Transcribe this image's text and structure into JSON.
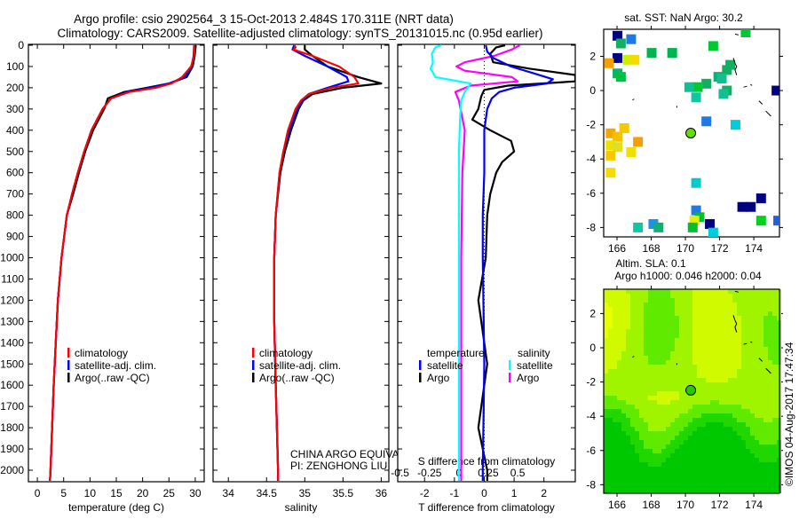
{
  "title": {
    "line1": "Argo profile: csio 2902564_3 15-Oct-2013 2.484S 170.311E (NRT data)",
    "line2": "Climatology: CARS2009. Satellite-adjusted climatology: synTS_20131015.nc (0.95d earlier)"
  },
  "watermark": "©IMOS 04-Aug-2017 17:47:34",
  "colors": {
    "climatology": "#ff0000",
    "satellite": "#0000ff",
    "argo": "#000000",
    "sal_satellite": "#00ffff",
    "sal_argo": "#ff00ff"
  },
  "chart_data": [
    {
      "id": "temperature",
      "type": "line",
      "xlabel": "temperature (deg C)",
      "xlim": [
        -1.7,
        31.7
      ],
      "ylim": [
        0,
        2050
      ],
      "y_inverted": true,
      "xticks": [
        "0",
        "5",
        "10",
        "15",
        "20",
        "25",
        "30"
      ],
      "yticks": [
        "0",
        "100",
        "200",
        "300",
        "400",
        "500",
        "600",
        "700",
        "800",
        "900",
        "1000",
        "1100",
        "1200",
        "1300",
        "1400",
        "1500",
        "1600",
        "1700",
        "1800",
        "1900",
        "2000"
      ],
      "legend": [
        {
          "label": "climatology",
          "color": "#ff0000"
        },
        {
          "label": "satellite-adj. clim.",
          "color": "#0000ff"
        },
        {
          "label": "Argo(..raw -QC)",
          "color": "#000000"
        }
      ],
      "series": [
        {
          "name": "climatology",
          "color": "#ff0000",
          "depth": [
            0,
            50,
            100,
            150,
            180,
            200,
            220,
            250,
            300,
            400,
            500,
            600,
            700,
            800,
            1000,
            1200,
            1400,
            1600,
            1800,
            2000,
            2050
          ],
          "values": [
            29.9,
            29.8,
            29.2,
            27.5,
            25.5,
            22.5,
            17.5,
            14,
            12.4,
            10.3,
            8.9,
            7.7,
            6.6,
            5.6,
            4.6,
            3.9,
            3.5,
            3.1,
            2.8,
            2.5,
            2.4
          ]
        },
        {
          "name": "satellite-adj. clim.",
          "color": "#0000ff",
          "depth": [
            0,
            50,
            100,
            150,
            180,
            200,
            220,
            250,
            300,
            400,
            500,
            600,
            700,
            800,
            1000,
            1200,
            1400,
            1600,
            1800,
            2000,
            2050
          ],
          "values": [
            29.8,
            29.7,
            29.3,
            28.0,
            25.0,
            21.5,
            17.0,
            14,
            12.4,
            10.3,
            8.9,
            7.7,
            6.6,
            5.6,
            4.6,
            3.9,
            3.5,
            3.1,
            2.8,
            2.5,
            2.4
          ]
        },
        {
          "name": "Argo",
          "color": "#000000",
          "depth": [
            0,
            50,
            100,
            150,
            180,
            200,
            220,
            250,
            300,
            400,
            500,
            600,
            700,
            800,
            1000,
            1200,
            1400,
            1600,
            1800,
            2000,
            2050
          ],
          "values": [
            30.1,
            29.9,
            29.5,
            28.4,
            25.0,
            20.8,
            16.5,
            13.4,
            12.7,
            10.6,
            9.1,
            7.9,
            6.8,
            5.6,
            4.6,
            3.9,
            3.5,
            3.1,
            2.8,
            2.5,
            2.4
          ]
        }
      ]
    },
    {
      "id": "salinity",
      "type": "line",
      "xlabel": "salinity",
      "xlim": [
        33.8,
        36.1
      ],
      "ylim": [
        0,
        2050
      ],
      "y_inverted": true,
      "xticks": [
        "34",
        "34.5",
        "35",
        "35.5",
        "36"
      ],
      "legend": [
        {
          "label": "climatology",
          "color": "#ff0000"
        },
        {
          "label": "satellite-adj. clim.",
          "color": "#0000ff"
        },
        {
          "label": "Argo(..raw -QC)",
          "color": "#000000"
        }
      ],
      "annotation": [
        "CHINA ARGO EQUIVALENT",
        "PI: ZENGHONG LIU"
      ],
      "series": [
        {
          "name": "climatology",
          "color": "#ff0000",
          "depth": [
            0,
            10,
            20,
            50,
            100,
            150,
            180,
            200,
            230,
            260,
            300,
            400,
            500,
            600,
            800,
            1000,
            1300,
            1600,
            2000,
            2050
          ],
          "values": [
            34.86,
            34.88,
            34.85,
            35.1,
            35.45,
            35.65,
            35.7,
            35.35,
            35.05,
            34.95,
            34.88,
            34.78,
            34.72,
            34.67,
            34.62,
            34.6,
            34.6,
            34.62,
            34.65,
            34.65
          ]
        },
        {
          "name": "satellite-adj. clim.",
          "color": "#0000ff",
          "depth": [
            0,
            10,
            20,
            50,
            100,
            150,
            170,
            200,
            230,
            260,
            300,
            400,
            500,
            600,
            800,
            1000,
            1300,
            1600,
            2000,
            2050
          ],
          "values": [
            34.86,
            34.85,
            34.84,
            35.0,
            35.3,
            35.55,
            35.57,
            35.3,
            35.05,
            34.97,
            34.9,
            34.8,
            34.72,
            34.67,
            34.62,
            34.6,
            34.6,
            34.62,
            34.65,
            34.65
          ]
        },
        {
          "name": "Argo",
          "color": "#000000",
          "depth": [
            0,
            20,
            50,
            100,
            150,
            180,
            200,
            230,
            260,
            300,
            400,
            500,
            600,
            800,
            1000,
            1300,
            1600,
            2000,
            2050
          ],
          "values": [
            35.0,
            35.0,
            35.1,
            35.3,
            35.7,
            36.0,
            35.5,
            35.1,
            34.98,
            34.92,
            34.82,
            34.74,
            34.68,
            34.62,
            34.6,
            34.6,
            34.62,
            34.65,
            34.65
          ]
        }
      ]
    },
    {
      "id": "difference",
      "type": "line",
      "xlabel": "T difference from climatology",
      "xlabel_top": "S difference from climatology",
      "xlim": [
        -2.9,
        3.05
      ],
      "xlim_S": [
        -0.52,
        0.99
      ],
      "ylim": [
        0,
        2050
      ],
      "y_inverted": true,
      "xticks": [
        "-2",
        "-1",
        "0",
        "1",
        "2"
      ],
      "xticks_S": [
        "-0.5",
        "-0.25",
        "0",
        "0.25",
        "0.5"
      ],
      "legend_headers": [
        "temperature",
        "salinity"
      ],
      "legend": [
        {
          "label": "satellite",
          "color": "#0000ff",
          "group": "temperature"
        },
        {
          "label": "Argo",
          "color": "#000000",
          "group": "temperature"
        },
        {
          "label": "satellite",
          "color": "#00ffff",
          "group": "salinity"
        },
        {
          "label": "Argo",
          "color": "#ff00ff",
          "group": "salinity"
        }
      ],
      "series": [
        {
          "name": "T satellite",
          "axis": "T",
          "color": "#0000ff",
          "depth": [
            0,
            30,
            60,
            100,
            130,
            160,
            180,
            200,
            220,
            250,
            300,
            400,
            600,
            800,
            1000,
            1500,
            2000,
            2050
          ],
          "values": [
            0.05,
            0.1,
            0.3,
            0.9,
            1.6,
            2.3,
            2.1,
            1.0,
            0.5,
            0.25,
            0.1,
            0.0,
            0.0,
            -0.05,
            -0.05,
            0.0,
            -0.05,
            -0.05
          ]
        },
        {
          "name": "T Argo",
          "axis": "T",
          "color": "#000000",
          "depth": [
            0,
            10,
            40,
            80,
            110,
            140,
            170,
            190,
            210,
            240,
            300,
            350,
            400,
            450,
            500,
            550,
            600,
            700,
            800,
            1000,
            1200,
            1500,
            1800,
            2000,
            2050
          ],
          "values": [
            0.7,
            0.4,
            0.2,
            0.3,
            1.5,
            3.05,
            3.05,
            0.8,
            0.0,
            -0.1,
            -0.2,
            -0.4,
            0.2,
            0.9,
            1.0,
            0.6,
            0.4,
            0.2,
            0.1,
            0.05,
            -0.2,
            0.1,
            -0.2,
            0.1,
            0.1
          ]
        },
        {
          "name": "S satellite",
          "axis": "S",
          "color": "#00ffff",
          "depth": [
            0,
            10,
            40,
            80,
            110,
            150,
            180,
            220,
            260,
            350,
            500,
            800,
            1200,
            2000,
            2050
          ],
          "values": [
            -0.15,
            -0.2,
            -0.23,
            -0.22,
            -0.24,
            -0.2,
            0.1,
            0.05,
            0.02,
            0.01,
            0.0,
            0.0,
            0.0,
            0.0,
            0.0
          ]
        },
        {
          "name": "S Argo",
          "axis": "S",
          "color": "#ff00ff",
          "depth": [
            0,
            20,
            50,
            80,
            100,
            120,
            150,
            170,
            190,
            220,
            260,
            400,
            600,
            1000,
            1500,
            2000,
            2050
          ],
          "values": [
            0.52,
            0.45,
            0.3,
            0.05,
            -0.02,
            0.05,
            0.45,
            0.5,
            0.1,
            -0.03,
            0.0,
            0.05,
            0.03,
            0.02,
            0.02,
            0.02,
            0.02
          ]
        }
      ]
    },
    {
      "id": "sst_map",
      "type": "scatter",
      "title": "sat. SST: NaN Argo: 30.2",
      "xlim": [
        165.22,
        175.5
      ],
      "ylim": [
        -8.55,
        3.58
      ],
      "xticks": [
        "166",
        "168",
        "170",
        "172",
        "174"
      ],
      "yticks": [
        "2",
        "0",
        "-2",
        "-4",
        "-6",
        "-8"
      ],
      "argo_position": {
        "lon": 170.311,
        "lat": -2.484,
        "color": "#66dd00"
      },
      "points": [
        {
          "lon": 166.0,
          "lat": 3.2,
          "color": "#000080"
        },
        {
          "lon": 166.8,
          "lat": 3.0,
          "color": "#1e78e6"
        },
        {
          "lon": 166.2,
          "lat": 2.75,
          "color": "#10b060"
        },
        {
          "lon": 171.6,
          "lat": 2.6,
          "color": "#00c832"
        },
        {
          "lon": 168.0,
          "lat": 2.2,
          "color": "#00b450"
        },
        {
          "lon": 169.2,
          "lat": 2.2,
          "color": "#00b450"
        },
        {
          "lon": 166.0,
          "lat": 1.9,
          "color": "#000080"
        },
        {
          "lon": 165.5,
          "lat": 1.6,
          "color": "#f5a000"
        },
        {
          "lon": 166.6,
          "lat": 1.8,
          "color": "#c8f000"
        },
        {
          "lon": 167.0,
          "lat": 1.8,
          "color": "#f5dc00"
        },
        {
          "lon": 166.0,
          "lat": 1.0,
          "color": "#10b070"
        },
        {
          "lon": 166.2,
          "lat": 0.8,
          "color": "#00c040"
        },
        {
          "lon": 172.6,
          "lat": 1.5,
          "color": "#10b060"
        },
        {
          "lon": 172.4,
          "lat": 1.2,
          "color": "#10b060"
        },
        {
          "lon": 171.9,
          "lat": 0.8,
          "color": "#10b070"
        },
        {
          "lon": 172.1,
          "lat": 0.7,
          "color": "#10c090"
        },
        {
          "lon": 171.2,
          "lat": 0.4,
          "color": "#10b060"
        },
        {
          "lon": 170.7,
          "lat": 0.2,
          "color": "#00c832"
        },
        {
          "lon": 170.2,
          "lat": 0.2,
          "color": "#10c090"
        },
        {
          "lon": 170.6,
          "lat": -0.4,
          "color": "#10c8a0"
        },
        {
          "lon": 172.4,
          "lat": 0.0,
          "color": "#10b060"
        },
        {
          "lon": 172.2,
          "lat": -0.2,
          "color": "#10c090"
        },
        {
          "lon": 175.3,
          "lat": 0.0,
          "color": "#000080"
        },
        {
          "lon": 171.2,
          "lat": -1.8,
          "color": "#1e78e6"
        },
        {
          "lon": 172.9,
          "lat": -2.0,
          "color": "#00ccdd"
        },
        {
          "lon": 166.4,
          "lat": -2.2,
          "color": "#f5c800"
        },
        {
          "lon": 165.6,
          "lat": -2.5,
          "color": "#f5a800"
        },
        {
          "lon": 166.0,
          "lat": -2.7,
          "color": "#f5c000"
        },
        {
          "lon": 167.2,
          "lat": -3.0,
          "color": "#f5a000"
        },
        {
          "lon": 165.6,
          "lat": -3.2,
          "color": "#f0e000"
        },
        {
          "lon": 166.0,
          "lat": -3.3,
          "color": "#e0e020"
        },
        {
          "lon": 166.8,
          "lat": -3.6,
          "color": "#f0e000"
        },
        {
          "lon": 165.6,
          "lat": -3.8,
          "color": "#f5c800"
        },
        {
          "lon": 165.6,
          "lat": -4.8,
          "color": "#f5dc00"
        },
        {
          "lon": 170.6,
          "lat": -5.4,
          "color": "#00ccd0"
        },
        {
          "lon": 174.4,
          "lat": -6.3,
          "color": "#000080"
        },
        {
          "lon": 173.8,
          "lat": -6.8,
          "color": "#000080"
        },
        {
          "lon": 173.3,
          "lat": -6.8,
          "color": "#000080"
        },
        {
          "lon": 174.4,
          "lat": -7.6,
          "color": "#00d020"
        },
        {
          "lon": 170.6,
          "lat": -7.0,
          "color": "#1e78e6"
        },
        {
          "lon": 170.8,
          "lat": -7.4,
          "color": "#00c030"
        },
        {
          "lon": 170.5,
          "lat": -7.6,
          "color": "#e0f000"
        },
        {
          "lon": 171.4,
          "lat": -7.8,
          "color": "#000080"
        },
        {
          "lon": 171.6,
          "lat": -8.3,
          "color": "#00ccdd"
        },
        {
          "lon": 170.4,
          "lat": -8.0,
          "color": "#00c030"
        },
        {
          "lon": 167.2,
          "lat": -8.0,
          "color": "#10c8a0"
        },
        {
          "lon": 168.1,
          "lat": -7.8,
          "color": "#1e90f0"
        },
        {
          "lon": 168.4,
          "lat": -8.0,
          "color": "#10b070"
        },
        {
          "lon": 175.4,
          "lat": -7.6,
          "color": "#1e60e0"
        },
        {
          "lon": 173.5,
          "lat": 3.4,
          "color": "#00c832"
        }
      ]
    },
    {
      "id": "sla_map",
      "type": "heatmap",
      "title_line1": "Altim. SLA: 0.1",
      "title_line2": "Argo h1000: 0.046 h2000: 0.04",
      "xlim": [
        165.22,
        175.5
      ],
      "ylim": [
        -8.5,
        3.42
      ],
      "xticks": [
        "166",
        "168",
        "170",
        "172",
        "174"
      ],
      "yticks": [
        "2",
        "0",
        "-2",
        "-4",
        "-6",
        "-8"
      ],
      "argo_position": {
        "lon": 170.311,
        "lat": -2.484,
        "color": "#22cc00"
      },
      "colormap": [
        "#00c800",
        "#20d800",
        "#60ea00",
        "#a0f400",
        "#d0fa00",
        "#e8ff00"
      ]
    }
  ]
}
